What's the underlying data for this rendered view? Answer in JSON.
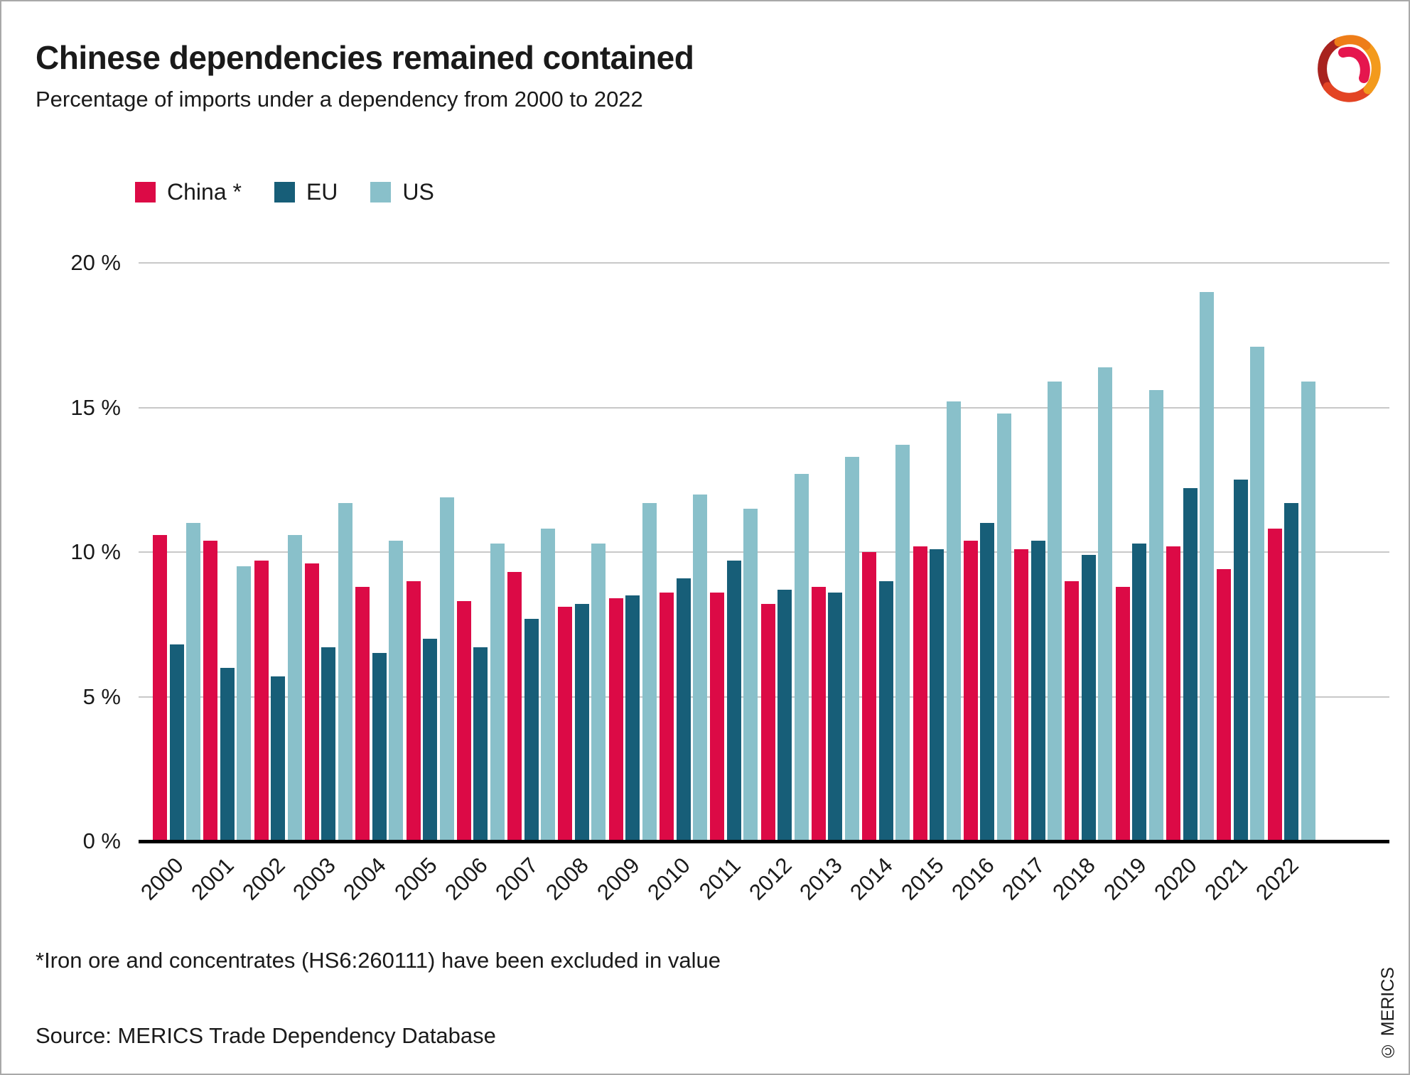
{
  "header": {
    "title": "Chinese dependencies remained contained",
    "subtitle": "Percentage of imports under a dependency from 2000 to 2022"
  },
  "legend": {
    "items": [
      {
        "label": "China *",
        "color": "#dc0a46"
      },
      {
        "label": "EU",
        "color": "#175e78"
      },
      {
        "label": "US",
        "color": "#89c0ca"
      }
    ]
  },
  "chart_data": {
    "type": "bar",
    "title": "Chinese dependencies remained contained",
    "subtitle": "Percentage of imports under a dependency from 2000 to 2022",
    "categories": [
      "2000",
      "2001",
      "2002",
      "2003",
      "2004",
      "2005",
      "2006",
      "2007",
      "2008",
      "2009",
      "2010",
      "2011",
      "2012",
      "2013",
      "2014",
      "2015",
      "2016",
      "2017",
      "2018",
      "2019",
      "2020",
      "2021",
      "2022"
    ],
    "series": [
      {
        "name": "China *",
        "color": "#dc0a46",
        "values": [
          10.6,
          10.4,
          9.7,
          9.6,
          8.8,
          9.0,
          8.3,
          9.3,
          8.1,
          8.4,
          8.6,
          8.6,
          8.2,
          8.8,
          10.0,
          10.2,
          10.4,
          10.1,
          9.0,
          8.8,
          10.2,
          9.4,
          10.8
        ]
      },
      {
        "name": "EU",
        "color": "#175e78",
        "values": [
          6.8,
          6.0,
          5.7,
          6.7,
          6.5,
          7.0,
          6.7,
          7.7,
          8.2,
          8.5,
          9.1,
          9.7,
          8.7,
          8.6,
          9.0,
          10.1,
          11.0,
          10.4,
          9.9,
          10.3,
          12.2,
          12.5,
          11.7
        ]
      },
      {
        "name": "US",
        "color": "#89c0ca",
        "values": [
          11.0,
          9.5,
          10.6,
          11.7,
          10.4,
          11.9,
          10.3,
          10.8,
          10.3,
          11.7,
          12.0,
          11.5,
          12.7,
          13.3,
          13.7,
          15.2,
          14.8,
          15.9,
          16.4,
          15.6,
          19.0,
          17.1,
          15.9
        ]
      }
    ],
    "xlabel": "",
    "ylabel": "",
    "ylim": [
      0,
      20
    ],
    "yticks": [
      {
        "label": "0 %",
        "value": 0
      },
      {
        "label": "5 %",
        "value": 5
      },
      {
        "label": "10 %",
        "value": 10
      },
      {
        "label": "15 %",
        "value": 15
      },
      {
        "label": "20 %",
        "value": 20
      }
    ],
    "grid": true,
    "legend_position": "top-left"
  },
  "footer": {
    "footnote": "*Iron ore and concentrates (HS6:260111) have been excluded in value",
    "source": "Source: MERICS Trade Dependency Database",
    "copyright": "© MERICS"
  }
}
